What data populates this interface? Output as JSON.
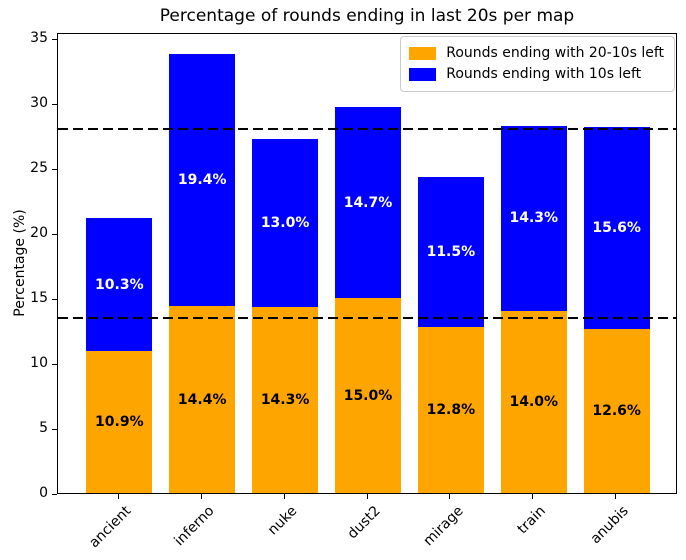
{
  "figure": {
    "title": "Percentage of rounds ending in last 20s per map",
    "ylabel": "Percentage (%)"
  },
  "legend": {
    "items": [
      {
        "label": "Rounds ending with 20-10s left",
        "color": "#FFA500"
      },
      {
        "label": "Rounds ending with 10s left",
        "color": "#0000FF"
      }
    ]
  },
  "chart_data": {
    "type": "bar",
    "stacked": true,
    "title": "Percentage of rounds ending in last 20s per map",
    "xlabel": "",
    "ylabel": "Percentage (%)",
    "categories": [
      "ancient",
      "inferno",
      "nuke",
      "dust2",
      "mirage",
      "train",
      "anubis"
    ],
    "series": [
      {
        "name": "Rounds ending with 20-10s left",
        "color": "#FFA500",
        "label_color": "#000000",
        "values": [
          10.9,
          14.4,
          14.3,
          15.0,
          12.8,
          14.0,
          12.6
        ]
      },
      {
        "name": "Rounds ending with 10s left",
        "color": "#0000FF",
        "label_color": "#FFFFFF",
        "values": [
          10.3,
          19.4,
          13.0,
          14.7,
          11.5,
          14.3,
          15.6
        ]
      }
    ],
    "stack_totals": [
      21.2,
      33.8,
      27.3,
      29.7,
      24.3,
      28.3,
      28.2
    ],
    "bar_label_suffix": "%",
    "reference_lines": {
      "style": "dashed",
      "color": "#000000",
      "values": [
        28.0,
        13.5
      ]
    },
    "yticks": [
      0,
      5,
      10,
      15,
      20,
      25,
      30,
      35
    ],
    "ylim": [
      0,
      35.5
    ],
    "legend_position": "upper right",
    "grid": false
  }
}
